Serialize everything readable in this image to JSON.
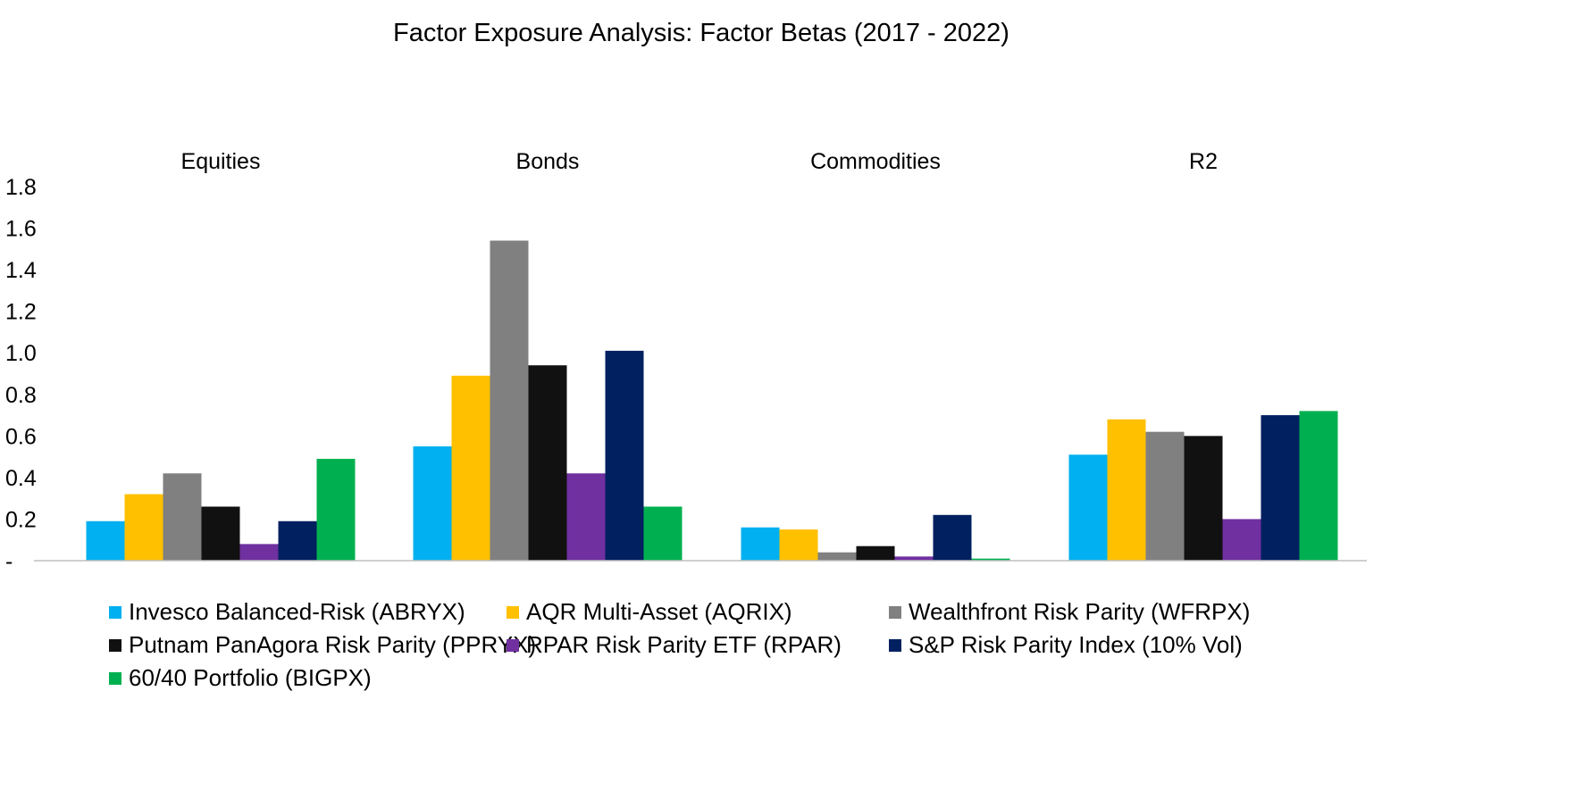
{
  "chart_data": {
    "type": "bar",
    "title": "Factor Exposure Analysis: Factor Betas (2017 - 2022)",
    "categories": [
      "Equities",
      "Bonds",
      "Commodities",
      "R2"
    ],
    "xlabel": "",
    "ylabel": "",
    "ylim": [
      0,
      1.8
    ],
    "yticks": [
      0,
      0.2,
      0.4,
      0.6,
      0.8,
      1.0,
      1.2,
      1.4,
      1.6,
      1.8
    ],
    "ytick_labels": [
      "-",
      "0.2",
      "0.4",
      "0.6",
      "0.8",
      "1.0",
      "1.2",
      "1.4",
      "1.6",
      "1.8"
    ],
    "grid": false,
    "legend_position": "bottom",
    "series": [
      {
        "name": "Invesco Balanced-Risk (ABRYX)",
        "color": "#00b0f0",
        "values": [
          0.19,
          0.55,
          0.16,
          0.51
        ]
      },
      {
        "name": "AQR Multi-Asset (AQRIX)",
        "color": "#ffc000",
        "values": [
          0.32,
          0.89,
          0.15,
          0.68
        ]
      },
      {
        "name": "Wealthfront Risk Parity (WFRPX)",
        "color": "#808080",
        "values": [
          0.42,
          1.54,
          0.04,
          0.62
        ]
      },
      {
        "name": "Putnam PanAgora Risk Parity (PPRYX)",
        "color": "#111111",
        "values": [
          0.26,
          0.94,
          0.07,
          0.6
        ]
      },
      {
        "name": "RPAR Risk Parity ETF (RPAR)",
        "color": "#7030a0",
        "values": [
          0.08,
          0.42,
          0.02,
          0.2
        ]
      },
      {
        "name": "S&P Risk Parity Index (10% Vol)",
        "color": "#002060",
        "values": [
          0.19,
          1.01,
          0.22,
          0.7
        ]
      },
      {
        "name": "60/40 Portfolio (BIGPX)",
        "color": "#00b050",
        "values": [
          0.49,
          0.26,
          0.01,
          0.72
        ]
      }
    ]
  }
}
